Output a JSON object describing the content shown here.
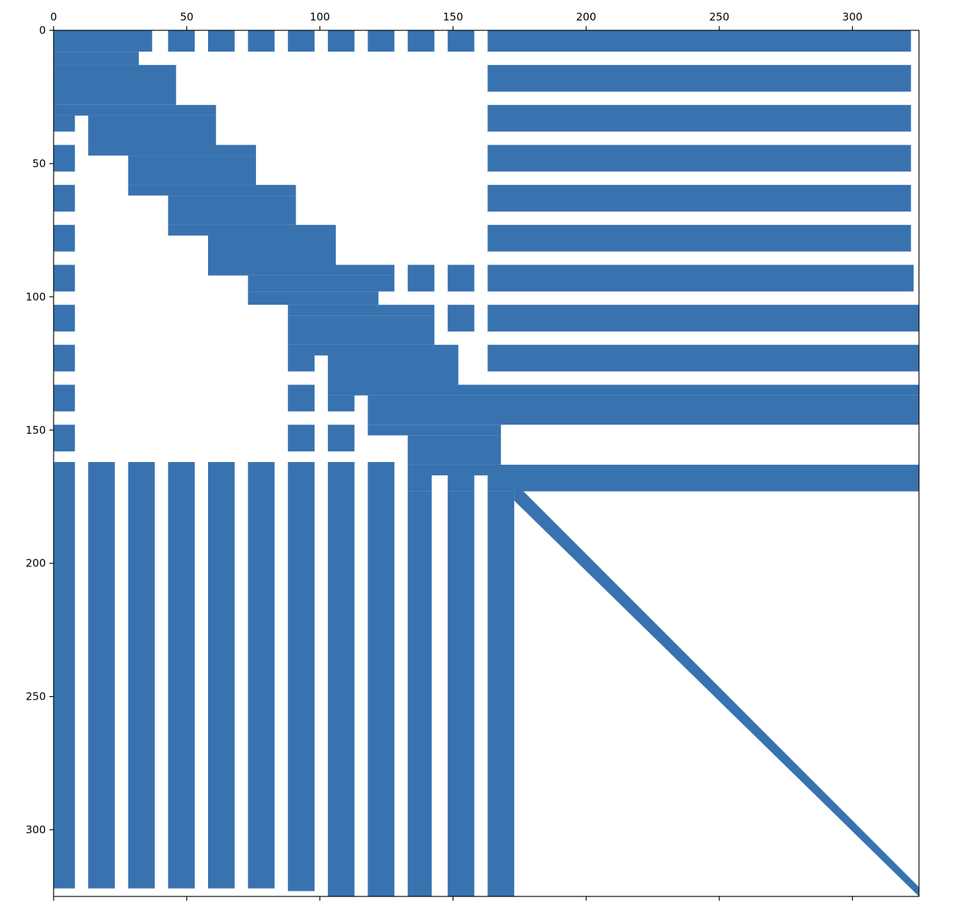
{
  "chart_data": {
    "type": "heatmap",
    "title": "",
    "xlabel": "",
    "ylabel": "",
    "xlim": [
      0,
      325
    ],
    "ylim": [
      325,
      0
    ],
    "x_ticks": [
      0,
      50,
      100,
      150,
      200,
      250,
      300
    ],
    "y_ticks": [
      0,
      50,
      100,
      150,
      200,
      250,
      300
    ],
    "x_tick_labels": [
      "0",
      "50",
      "100",
      "150",
      "200",
      "250",
      "300"
    ],
    "y_tick_labels": [
      "0",
      "50",
      "100",
      "150",
      "200",
      "250",
      "300"
    ],
    "x_axis_position": "top",
    "grid": false,
    "marker_color": "#3873b0",
    "description_of_values": "Nonzero sparsity pattern of a 325x325 matrix, listed as filled rectangles [col_start, row_start, col_end, row_end] in matrix index units",
    "blocks": [
      [
        0,
        0,
        37,
        8
      ],
      [
        0,
        8,
        32,
        13
      ],
      [
        0,
        13,
        46,
        28
      ],
      [
        0,
        28,
        61,
        32
      ],
      [
        0,
        32,
        8,
        38
      ],
      [
        13,
        32,
        61,
        43
      ],
      [
        13,
        43,
        76,
        47
      ],
      [
        28,
        47,
        76,
        58
      ],
      [
        28,
        58,
        91,
        62
      ],
      [
        43,
        62,
        91,
        73
      ],
      [
        43,
        73,
        106,
        77
      ],
      [
        58,
        77,
        106,
        88
      ],
      [
        58,
        88,
        128,
        92
      ],
      [
        73,
        92,
        128,
        98
      ],
      [
        73,
        98,
        122,
        103
      ],
      [
        88,
        103,
        143,
        107
      ],
      [
        88,
        107,
        143,
        118
      ],
      [
        88,
        118,
        152,
        122
      ],
      [
        88,
        122,
        98,
        128
      ],
      [
        103,
        122,
        152,
        133
      ],
      [
        103,
        133,
        325,
        137
      ],
      [
        103,
        137,
        113,
        143
      ],
      [
        118,
        137,
        325,
        148
      ],
      [
        118,
        148,
        168,
        152
      ],
      [
        133,
        152,
        168,
        163
      ],
      [
        133,
        163,
        325,
        167
      ],
      [
        133,
        167,
        142,
        173
      ],
      [
        148,
        167,
        158,
        173
      ],
      [
        163,
        167,
        325,
        173
      ],
      [
        163,
        173,
        173,
        325
      ],
      [
        103,
        162,
        113,
        325
      ],
      [
        118,
        162,
        128,
        325
      ],
      [
        133,
        173,
        142,
        325
      ],
      [
        148,
        173,
        158,
        325
      ]
    ],
    "row_bars": [
      [
        43,
        0,
        53,
        8
      ],
      [
        58,
        0,
        68,
        8
      ],
      [
        73,
        0,
        83,
        8
      ],
      [
        88,
        0,
        98,
        8
      ],
      [
        103,
        0,
        113,
        8
      ],
      [
        118,
        0,
        128,
        8
      ],
      [
        133,
        0,
        143,
        8
      ],
      [
        148,
        0,
        158,
        8
      ],
      [
        163,
        0,
        322,
        8
      ],
      [
        163,
        13,
        322,
        23
      ],
      [
        163,
        28,
        322,
        38
      ],
      [
        163,
        43,
        322,
        53
      ],
      [
        163,
        58,
        322,
        68
      ],
      [
        163,
        73,
        322,
        83
      ],
      [
        133,
        88,
        143,
        98
      ],
      [
        148,
        88,
        158,
        98
      ],
      [
        163,
        88,
        323,
        98
      ],
      [
        148,
        103,
        158,
        113
      ],
      [
        163,
        103,
        325,
        113
      ],
      [
        163,
        118,
        325,
        128
      ],
      [
        0,
        43,
        8,
        53
      ],
      [
        0,
        58,
        8,
        68
      ],
      [
        0,
        73,
        8,
        83
      ],
      [
        0,
        88,
        8,
        98
      ],
      [
        0,
        103,
        8,
        113
      ],
      [
        0,
        118,
        8,
        128
      ],
      [
        0,
        133,
        8,
        143
      ],
      [
        0,
        148,
        8,
        158
      ],
      [
        88,
        133,
        98,
        143
      ],
      [
        88,
        148,
        98,
        158
      ],
      [
        103,
        148,
        113,
        158
      ]
    ],
    "col_bars": [
      [
        0,
        162,
        8,
        322
      ],
      [
        13,
        162,
        23,
        322
      ],
      [
        28,
        162,
        38,
        322
      ],
      [
        43,
        162,
        53,
        322
      ],
      [
        58,
        162,
        68,
        322
      ],
      [
        73,
        162,
        83,
        322
      ],
      [
        88,
        162,
        98,
        323
      ]
    ],
    "diagonal": {
      "from": [
        173,
        173
      ],
      "to": [
        325,
        325
      ],
      "thickness": 3.5
    }
  }
}
